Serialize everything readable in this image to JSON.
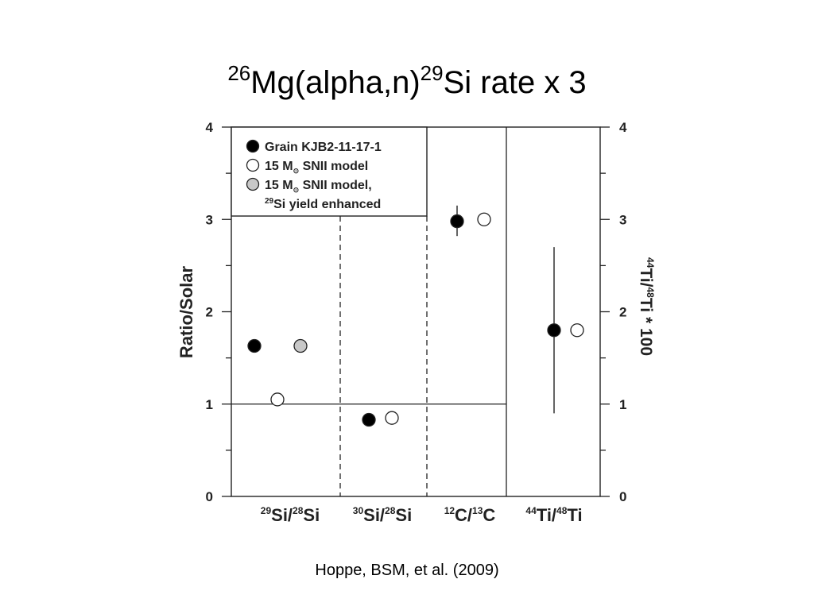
{
  "slide": {
    "title": {
      "sup1": "26",
      "text1": "Mg(alpha,n)",
      "sup2": "29",
      "text2": "Si rate x 3"
    },
    "caption": "Hoppe, BSM, et al. (2009)"
  },
  "chart_data": {
    "type": "scatter",
    "ylabel": "Ratio/Solar",
    "y2label": {
      "sup1": "44",
      "t1": "Ti/",
      "sup2": "48",
      "t2": "Ti * 100"
    },
    "ylim": [
      0,
      4
    ],
    "y2lim": [
      0,
      4
    ],
    "yticks": [
      "0",
      "1",
      "2",
      "3",
      "4"
    ],
    "y2ticks": [
      "0",
      "1",
      "2",
      "3",
      "4"
    ],
    "grid": false,
    "reference_line": 1,
    "legend": {
      "placement": "top-left",
      "entries": [
        {
          "text": "Grain KJB2-11-17-1",
          "fill": "#000000"
        },
        {
          "text": "15 M",
          "sub": "⊙",
          "text2": " SNII model",
          "fill": "#ffffff"
        },
        {
          "text": "15 M",
          "sub": "⊙",
          "text2": " SNII model,",
          "fill": "#c8c8c8"
        },
        {
          "sup": "29",
          "text": "Si yield enhanced"
        }
      ]
    },
    "categories": [
      {
        "sup1": "29",
        "t1": "Si/",
        "sup2": "28",
        "t2": "Si"
      },
      {
        "sup1": "30",
        "t1": "Si/",
        "sup2": "28",
        "t2": "Si"
      },
      {
        "sup1": "12",
        "t1": "C/",
        "sup2": "13",
        "t2": "C"
      },
      {
        "sup1": "44",
        "t1": "Ti/",
        "sup2": "48",
        "t2": "Ti"
      }
    ],
    "series": [
      {
        "name": "Grain KJB2-11-17-1",
        "fill": "#000000",
        "points": [
          {
            "category": 0,
            "y": 1.63
          },
          {
            "category": 1,
            "y": 0.83
          },
          {
            "category": 2,
            "y": 2.98,
            "err": [
              2.82,
              3.15
            ]
          },
          {
            "category": 3,
            "y": 1.8,
            "err": [
              0.9,
              2.7
            ]
          }
        ]
      },
      {
        "name": "15 M⊙ SNII model",
        "fill": "#ffffff",
        "points": [
          {
            "category": 0,
            "y": 1.05
          },
          {
            "category": 1,
            "y": 0.85
          },
          {
            "category": 2,
            "y": 3.0
          },
          {
            "category": 3,
            "y": 1.8
          }
        ]
      },
      {
        "name": "15 M⊙ SNII model, 29Si yield enhanced",
        "fill": "#c8c8c8",
        "points": [
          {
            "category": 0,
            "y": 1.63
          }
        ]
      }
    ]
  }
}
